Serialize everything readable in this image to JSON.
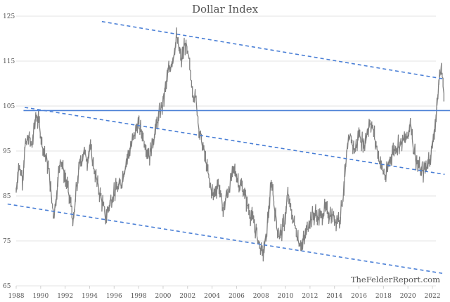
{
  "header": {
    "title": "Dollar Index"
  },
  "watermark": "TheFelderReport.com",
  "colors": {
    "series": "#808080",
    "trendline": "#4a7fd6",
    "grid": "#e3e3e3",
    "text": "#555555"
  },
  "chart_data": {
    "type": "line",
    "title": "Dollar Index",
    "xlabel": "",
    "ylabel": "",
    "ylim": [
      65,
      125
    ],
    "xlim": [
      1988,
      2023
    ],
    "grid": true,
    "legend": null,
    "yticks": [
      125,
      115,
      105,
      95,
      85,
      75,
      65
    ],
    "xticks": [
      1988,
      1990,
      1992,
      1994,
      1996,
      1998,
      2000,
      2002,
      2004,
      2006,
      2008,
      2010,
      2012,
      2014,
      2016,
      2018,
      2020,
      2022
    ],
    "series": [
      {
        "name": "Dollar Index",
        "x": [
          1988.0,
          1988.2,
          1988.5,
          1988.7,
          1989.0,
          1989.3,
          1989.6,
          1989.9,
          1990.1,
          1990.4,
          1990.7,
          1990.9,
          1991.1,
          1991.4,
          1991.6,
          1991.9,
          1992.1,
          1992.4,
          1992.7,
          1992.9,
          1993.2,
          1993.5,
          1993.8,
          1994.0,
          1994.3,
          1994.6,
          1995.0,
          1995.3,
          1995.6,
          1996.0,
          1996.5,
          1997.0,
          1997.5,
          1997.9,
          1998.3,
          1998.6,
          1998.9,
          1999.3,
          1999.7,
          2000.0,
          2000.4,
          2000.8,
          2001.1,
          2001.5,
          2001.8,
          2002.1,
          2002.4,
          2002.7,
          2003.0,
          2003.4,
          2003.8,
          2004.1,
          2004.5,
          2004.9,
          2005.3,
          2005.8,
          2006.2,
          2006.6,
          2007.0,
          2007.4,
          2007.8,
          2008.1,
          2008.4,
          2008.7,
          2008.9,
          2009.2,
          2009.5,
          2009.9,
          2010.2,
          2010.5,
          2010.8,
          2011.1,
          2011.4,
          2011.7,
          2012.0,
          2012.4,
          2012.8,
          2013.2,
          2013.6,
          2014.0,
          2014.4,
          2014.7,
          2015.0,
          2015.3,
          2015.7,
          2016.0,
          2016.4,
          2016.9,
          2017.2,
          2017.6,
          2017.9,
          2018.2,
          2018.6,
          2019.0,
          2019.5,
          2020.0,
          2020.2,
          2020.5,
          2020.8,
          2021.1,
          2021.4,
          2021.7,
          2022.0,
          2022.3,
          2022.6,
          2022.8,
          2023.0
        ],
        "values": [
          86,
          92,
          89,
          95,
          98,
          96,
          103,
          101,
          97,
          94,
          90,
          84,
          81,
          88,
          94,
          90,
          88,
          84,
          79,
          86,
          92,
          95,
          93,
          96,
          92,
          88,
          84,
          80,
          83,
          86,
          87,
          93,
          97,
          101,
          99,
          96,
          94,
          99,
          103,
          106,
          112,
          116,
          120,
          115,
          119,
          115,
          109,
          106,
          99,
          94,
          88,
          85,
          88,
          82,
          86,
          91,
          88,
          86,
          82,
          79,
          75,
          72,
          75,
          84,
          88,
          80,
          76,
          79,
          85,
          81,
          78,
          75,
          74,
          77,
          80,
          81,
          80,
          82,
          81,
          80,
          80,
          85,
          94,
          98,
          95,
          99,
          96,
          102,
          99,
          94,
          91,
          89,
          94,
          96,
          97,
          98,
          102,
          95,
          92,
          90,
          91,
          93,
          96,
          103,
          112,
          113,
          104
        ]
      }
    ],
    "reference_lines": [
      {
        "type": "horizontal",
        "style": "solid",
        "value": 104,
        "x_range": [
          1988.6,
          2023
        ]
      },
      {
        "type": "trend",
        "style": "dashed",
        "label": "upper channel",
        "points": [
          [
            1995.0,
            123.8
          ],
          [
            2023.0,
            111.0
          ]
        ]
      },
      {
        "type": "trend",
        "style": "dashed",
        "label": "middle channel",
        "points": [
          [
            1988.7,
            104.7
          ],
          [
            2023.0,
            89.8
          ]
        ]
      },
      {
        "type": "trend",
        "style": "dashed",
        "label": "lower channel",
        "points": [
          [
            1987.3,
            83.2
          ],
          [
            2023.0,
            67.7
          ]
        ]
      }
    ]
  }
}
